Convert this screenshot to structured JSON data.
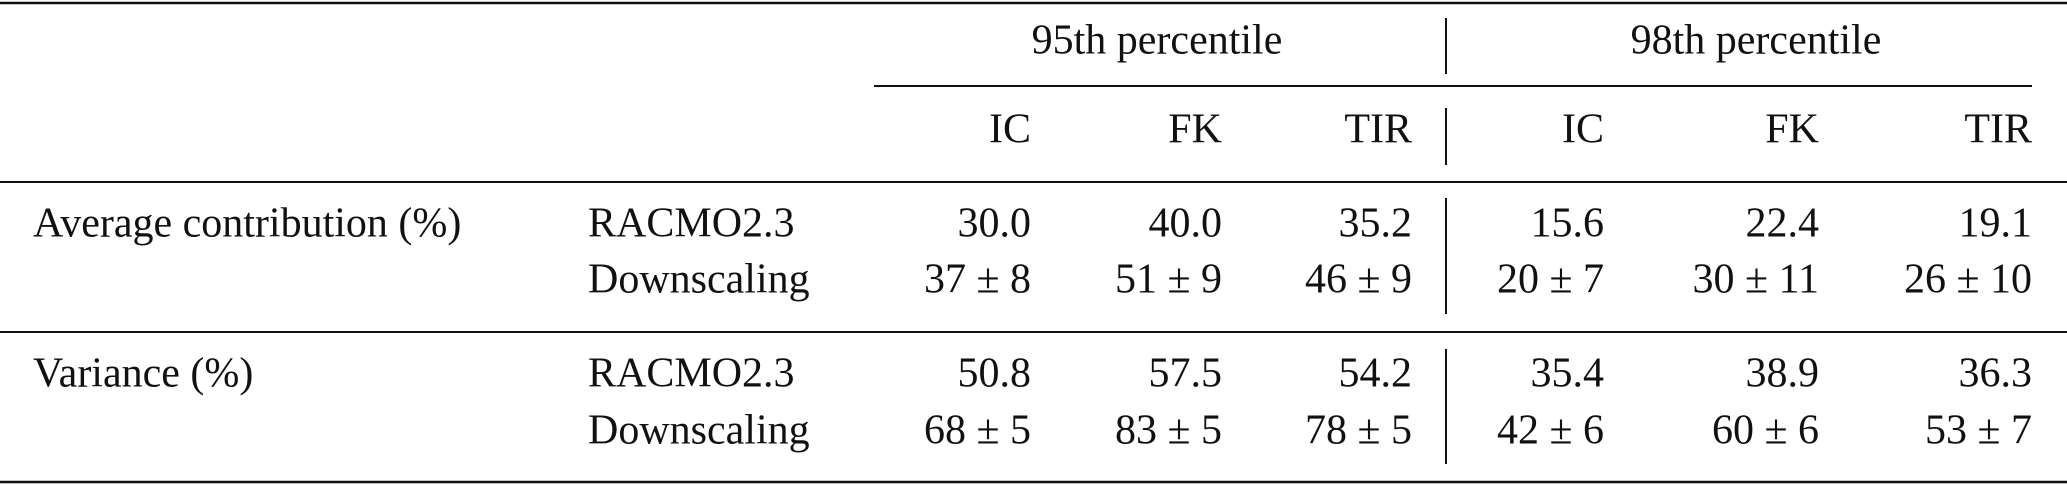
{
  "table": {
    "groups": [
      "95th percentile",
      "98th percentile"
    ],
    "columns": [
      "IC",
      "FK",
      "TIR",
      "IC",
      "FK",
      "TIR"
    ],
    "sections": [
      {
        "label": "Average contribution (%)",
        "rows": [
          {
            "model": "RACMO2.3",
            "cells": [
              "30.0",
              "40.0",
              "35.2",
              "15.6",
              "22.4",
              "19.1"
            ]
          },
          {
            "model": "Downscaling",
            "cells": [
              "37 ± 8",
              "51 ± 9",
              "46 ± 9",
              "20 ± 7",
              "30 ± 11",
              "26 ± 10"
            ]
          }
        ]
      },
      {
        "label": "Variance (%)",
        "rows": [
          {
            "model": "RACMO2.3",
            "cells": [
              "50.8",
              "57.5",
              "54.2",
              "35.4",
              "38.9",
              "36.3"
            ]
          },
          {
            "model": "Downscaling",
            "cells": [
              "68 ± 5",
              "83 ± 5",
              "78 ± 5",
              "42 ± 6",
              "60 ± 6",
              "53 ± 7"
            ]
          }
        ]
      }
    ]
  }
}
